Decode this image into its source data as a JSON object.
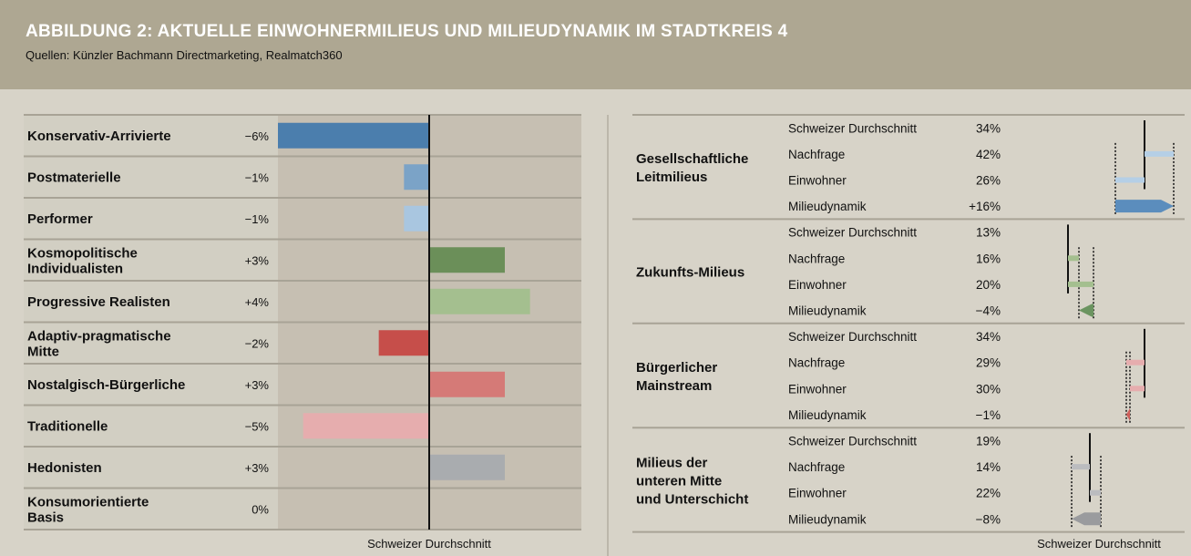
{
  "header": {
    "title": "ABBILDUNG 2: AKTUELLE EINWOHNERMILIEUS UND MILIEUDYNAMIK IM STADTKREIS 4",
    "subtitle": "Quellen: Künzler Bachmann Directmarketing, Realmatch360"
  },
  "chart_data": [
    {
      "type": "bar",
      "orientation": "horizontal",
      "xlabel": "Schweizer Durchschnitt",
      "reference_line": 0,
      "xlim": [
        -6,
        6
      ],
      "categories": [
        "Konservativ-Arrivierte",
        "Postmaterielle",
        "Performer",
        "Kosmopolitische Individualisten",
        "Progressive Realisten",
        "Adaptiv-pragmatische Mitte",
        "Nostalgisch-Bürgerliche",
        "Traditionelle",
        "Hedonisten",
        "Konsumorientierte Basis"
      ],
      "labels": [
        "−6%",
        "−1%",
        "−1%",
        "+3%",
        "+4%",
        "−2%",
        "+3%",
        "−5%",
        "+3%",
        "0%"
      ],
      "values": [
        -6,
        -1,
        -1,
        3,
        4,
        -2,
        3,
        -5,
        3,
        0
      ],
      "colors": [
        "#4b7ead",
        "#7ba3c7",
        "#a9c6e0",
        "#6b8f59",
        "#a4bf8f",
        "#c64e4a",
        "#d57a77",
        "#e6adae",
        "#a9acaf",
        "#a9acaf"
      ]
    },
    {
      "type": "bar",
      "orientation": "horizontal",
      "xlabel": "Schweizer Durchschnitt",
      "xlim": [
        0,
        50
      ],
      "row_labels": [
        "Schweizer Durchschnitt",
        "Nachfrage",
        "Einwohner",
        "Milieudynamik"
      ],
      "groups": [
        {
          "name": "Gesellschaftliche Leitmilieus",
          "name_lines": [
            "Gesellschaftliche",
            "Leitmilieus"
          ],
          "avg": 34,
          "nachfrage": 42,
          "einwohner": 26,
          "dynamik": 16,
          "texts": [
            "34%",
            "42%",
            "26%",
            "+16%"
          ],
          "color_light": "#b5cfe6",
          "color_dark": "#5b8dbd"
        },
        {
          "name": "Zukunfts-Milieus",
          "name_lines": [
            "Zukunfts-Milieus"
          ],
          "avg": 13,
          "nachfrage": 16,
          "einwohner": 20,
          "dynamik": -4,
          "texts": [
            "13%",
            "16%",
            "20%",
            "−4%"
          ],
          "color_light": "#a4bf8f",
          "color_dark": "#6b9460"
        },
        {
          "name": "Bürgerlicher Mainstream",
          "name_lines": [
            "Bürgerlicher",
            "Mainstream"
          ],
          "avg": 34,
          "nachfrage": 29,
          "einwohner": 30,
          "dynamik": -1,
          "texts": [
            "34%",
            "29%",
            "30%",
            "−1%"
          ],
          "color_light": "#e6adae",
          "color_dark": "#d0605c"
        },
        {
          "name": "Milieus der unteren Mitte und Unterschicht",
          "name_lines": [
            "Milieus der",
            "unteren Mitte",
            "und Unterschicht"
          ],
          "avg": 19,
          "nachfrage": 14,
          "einwohner": 22,
          "dynamik": -8,
          "texts": [
            "19%",
            "14%",
            "22%",
            "−8%"
          ],
          "color_light": "#bbbcbf",
          "color_dark": "#9a9b9e"
        }
      ]
    }
  ]
}
